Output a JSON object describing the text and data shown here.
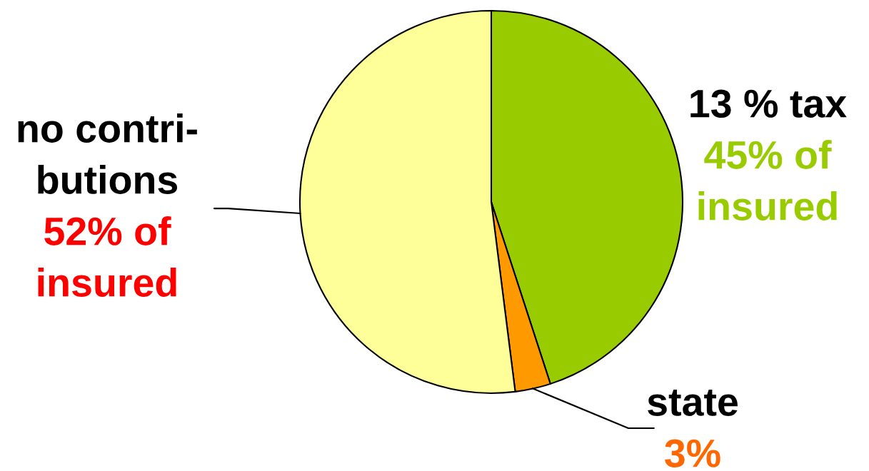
{
  "chart_data": {
    "type": "pie",
    "categories": [
      "13 % tax",
      "state",
      "no contri-\nbutions"
    ],
    "values": [
      45,
      3,
      52
    ],
    "colors": [
      "#99cc00",
      "#ff9900",
      "#ffff99"
    ],
    "value_labels": [
      "45% of\ninsured",
      "3%",
      "52% of\ninsured"
    ],
    "legend": false
  }
}
